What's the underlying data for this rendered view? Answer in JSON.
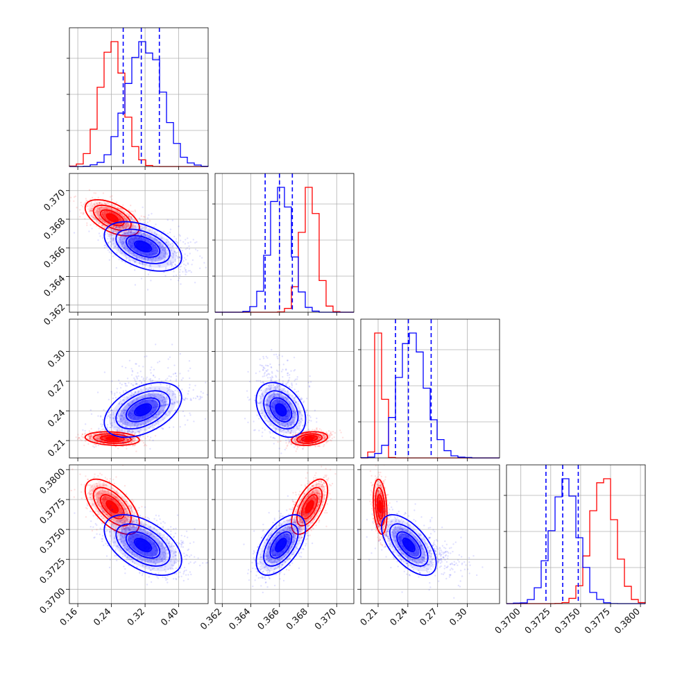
{
  "colors": {
    "red": "#ff0000",
    "blue": "#0000ff",
    "grid": "#b0b0b0"
  },
  "chart_data": {
    "type": "corner",
    "title": "",
    "grid": true,
    "quantile_lines": {
      "series": "blue",
      "style": "dashed"
    },
    "parameters": [
      {
        "range": [
          0.14,
          0.47
        ],
        "ticks": [
          0.16,
          0.24,
          0.32,
          0.4
        ],
        "tick_labels": [
          "0.16",
          "0.24",
          "0.32",
          "0.40"
        ],
        "quantiles_blue": [
          0.268,
          0.311,
          0.354
        ],
        "red": {
          "center": 0.242,
          "sd": 0.028
        },
        "blue": {
          "center": 0.315,
          "sd": 0.04,
          "skew": 0.02
        }
      },
      {
        "range": [
          0.3615,
          0.3712
        ],
        "ticks": [
          0.362,
          0.364,
          0.366,
          0.368,
          0.37
        ],
        "tick_labels": [
          "0.362",
          "0.364",
          "0.366",
          "0.368",
          "0.370"
        ],
        "quantiles_blue": [
          0.365,
          0.366,
          0.3669
        ],
        "red": {
          "center": 0.3681,
          "sd": 0.00055
        },
        "blue": {
          "center": 0.3661,
          "sd": 0.00075
        }
      },
      {
        "range": [
          0.1925,
          0.3325
        ],
        "ticks": [
          0.21,
          0.24,
          0.27,
          0.3
        ],
        "tick_labels": [
          "0.21",
          "0.24",
          "0.27",
          "0.30"
        ],
        "quantiles_blue": [
          0.2275,
          0.2405,
          0.2635
        ],
        "red": {
          "center": 0.212,
          "sd": 0.003
        },
        "blue": {
          "center": 0.241,
          "sd": 0.012,
          "skew": 0.018
        }
      },
      {
        "range": [
          0.3688,
          0.3804
        ],
        "ticks": [
          0.37,
          0.3725,
          0.375,
          0.3775,
          0.38
        ],
        "tick_labels": [
          "0.3700",
          "0.3725",
          "0.3750",
          "0.3775",
          "0.3800"
        ],
        "quantiles_blue": [
          0.3721,
          0.3735,
          0.3748
        ],
        "red": {
          "center": 0.3769,
          "sd": 0.001
        },
        "blue": {
          "center": 0.3737,
          "sd": 0.0011
        }
      }
    ],
    "correlations": {
      "red": {
        "1-0": -0.55,
        "2-0": -0.2,
        "2-1": 0.25,
        "3-0": -0.6,
        "3-1": 0.6,
        "3-2": -0.25
      },
      "blue": {
        "1-0": -0.45,
        "2-0": 0.45,
        "2-1": -0.35,
        "3-0": -0.5,
        "3-1": 0.55,
        "3-2": -0.6
      }
    }
  }
}
